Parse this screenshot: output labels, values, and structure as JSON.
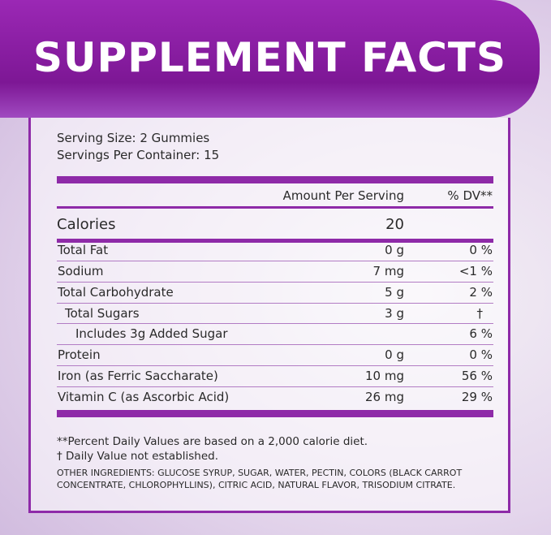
{
  "header": {
    "title": "SUPPLEMENT FACTS"
  },
  "serving": [
    "Serving Size: 2 Gummies",
    "Servings Per Container: 15"
  ],
  "table": {
    "columns": [
      "Amount Per Serving",
      "% DV**"
    ],
    "calories": {
      "label": "Calories",
      "value": "20"
    },
    "rows": [
      {
        "name": "Total Fat",
        "amount": "0 g",
        "dv": "0 %"
      },
      {
        "name": "Sodium",
        "amount": "7 mg",
        "dv": "<1 %"
      },
      {
        "name": "Total Carbohydrate",
        "amount": "5 g",
        "dv": "2 %"
      },
      {
        "name": "Total Sugars",
        "amount": "3 g",
        "dv": "†"
      },
      {
        "name": "Includes 3g Added Sugar",
        "dv": "6 %"
      },
      {
        "name": "Protein",
        "amount": "0 g",
        "dv": "0 %"
      },
      {
        "name": "Iron (as Ferric Saccharate)",
        "amount": "10 mg",
        "dv": "56 %"
      },
      {
        "name": "Vitamin C (as Ascorbic Acid)",
        "amount": "26 mg",
        "dv": "29 %"
      }
    ]
  },
  "footnotes": [
    "**Percent Daily Values are based on a 2,000 calorie diet.",
    "† Daily Value not established."
  ],
  "other_ingredients": "OTHER INGREDIENTS: GLUCOSE SYRUP, SUGAR, WATER, PECTIN, COLORS (BLACK CARROT CONCENTRATE, CHLOROPHYLLINS), CITRIC ACID, NATURAL FLAVOR, TRISODIUM CITRATE."
}
